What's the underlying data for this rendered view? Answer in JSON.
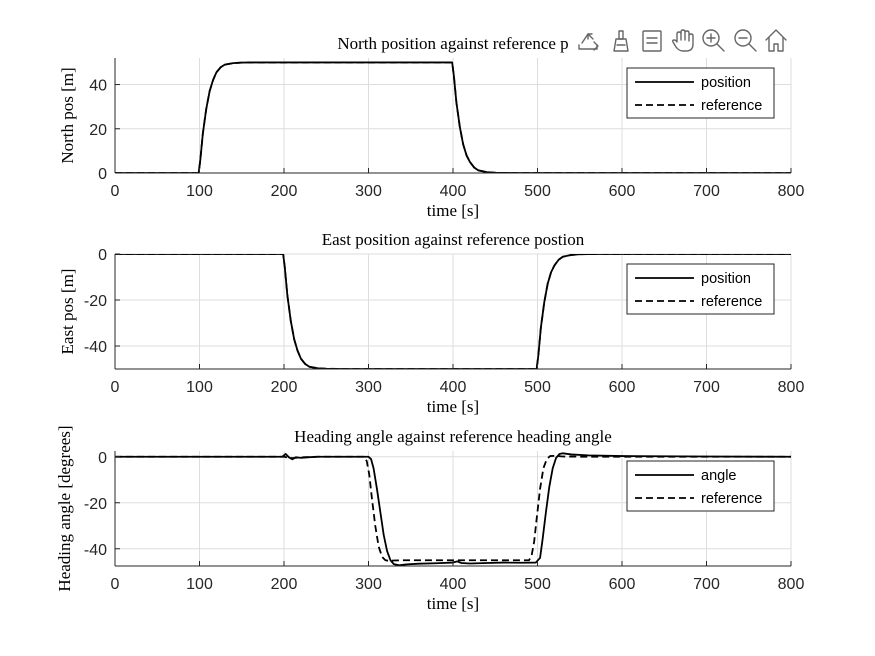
{
  "toolbar": {
    "icons": [
      "export-icon",
      "brush-icon",
      "datatip-icon",
      "pan-hand-icon",
      "zoom-in-icon",
      "zoom-out-icon",
      "home-icon"
    ]
  },
  "colors": {
    "line": "#000000",
    "grid": "#dddddd",
    "axis": "#262626",
    "background": "#ffffff"
  },
  "chart_data": [
    {
      "type": "line",
      "title": "North position against reference p",
      "xlabel": "time [s]",
      "ylabel": "North pos [m]",
      "xlim": [
        0,
        800
      ],
      "ylim": [
        0,
        52
      ],
      "xticks": [
        0,
        100,
        200,
        300,
        400,
        500,
        600,
        700,
        800
      ],
      "yticks": [
        0,
        20,
        40
      ],
      "grid": true,
      "legend_position": "top-right",
      "series": [
        {
          "name": "position",
          "style": "solid",
          "x": [
            0,
            99,
            101,
            104,
            108,
            112,
            116,
            120,
            125,
            130,
            140,
            150,
            160,
            399,
            401,
            404,
            408,
            412,
            416,
            420,
            425,
            430,
            440,
            450,
            470,
            800
          ],
          "y": [
            0,
            0,
            6,
            18,
            29,
            37,
            42,
            45.5,
            47.8,
            49,
            49.7,
            49.9,
            50,
            50,
            44,
            32,
            21,
            13,
            8,
            5,
            2.5,
            1.2,
            0.4,
            0.1,
            0,
            0
          ]
        },
        {
          "name": "reference",
          "style": "dashed",
          "x": [
            0,
            99,
            101,
            104,
            108,
            112,
            116,
            120,
            125,
            130,
            140,
            150,
            160,
            399,
            401,
            404,
            408,
            412,
            416,
            420,
            425,
            430,
            440,
            450,
            470,
            800
          ],
          "y": [
            0,
            0,
            6,
            18,
            29,
            37,
            42,
            45.5,
            47.8,
            49,
            49.7,
            49.9,
            50,
            50,
            44,
            32,
            21,
            13,
            8,
            5,
            2.5,
            1.2,
            0.4,
            0.1,
            0,
            0
          ]
        }
      ]
    },
    {
      "type": "line",
      "title": "East position against reference postion",
      "xlabel": "time [s]",
      "ylabel": "East pos [m]",
      "xlim": [
        0,
        800
      ],
      "ylim": [
        -50,
        0
      ],
      "xticks": [
        0,
        100,
        200,
        300,
        400,
        500,
        600,
        700,
        800
      ],
      "yticks": [
        -40,
        -20,
        0
      ],
      "grid": true,
      "legend_position": "top-right",
      "series": [
        {
          "name": "position",
          "style": "solid",
          "x": [
            0,
            199,
            201,
            204,
            208,
            212,
            216,
            220,
            225,
            230,
            240,
            250,
            270,
            499,
            501,
            504,
            508,
            512,
            516,
            520,
            525,
            530,
            540,
            550,
            570,
            800
          ],
          "y": [
            0,
            0,
            -6,
            -18,
            -29,
            -37,
            -42,
            -45.5,
            -47.8,
            -49,
            -49.7,
            -49.9,
            -50,
            -50,
            -44,
            -32,
            -21,
            -13,
            -8,
            -5,
            -2.5,
            -1.2,
            -0.4,
            -0.1,
            0,
            0
          ]
        },
        {
          "name": "reference",
          "style": "dashed",
          "x": [
            0,
            199,
            201,
            204,
            208,
            212,
            216,
            220,
            225,
            230,
            240,
            250,
            270,
            499,
            501,
            504,
            508,
            512,
            516,
            520,
            525,
            530,
            540,
            550,
            570,
            800
          ],
          "y": [
            0,
            0,
            -6,
            -18,
            -29,
            -37,
            -42,
            -45.5,
            -47.8,
            -49,
            -49.7,
            -49.9,
            -50,
            -50,
            -44,
            -32,
            -21,
            -13,
            -8,
            -5,
            -2.5,
            -1.2,
            -0.4,
            -0.1,
            0,
            0
          ]
        }
      ]
    },
    {
      "type": "line",
      "title": "Heading angle against reference heading angle",
      "xlabel": "time [s]",
      "ylabel": "Heading angle [degrees]",
      "xlim": [
        0,
        800
      ],
      "ylim": [
        -47.5,
        2.5
      ],
      "xticks": [
        0,
        100,
        200,
        300,
        400,
        500,
        600,
        700,
        800
      ],
      "yticks": [
        -40,
        -20,
        0
      ],
      "grid": true,
      "legend_position": "top-right",
      "series": [
        {
          "name": "angle",
          "style": "solid",
          "x": [
            0,
            198,
            202,
            206,
            210,
            214,
            220,
            230,
            240,
            300,
            303,
            306,
            310,
            314,
            318,
            322,
            326,
            330,
            336,
            345,
            360,
            380,
            400,
            405,
            410,
            420,
            440,
            460,
            480,
            498,
            503,
            506,
            510,
            514,
            518,
            522,
            526,
            530,
            540,
            560,
            600,
            700,
            800
          ],
          "y": [
            0,
            0,
            1.2,
            -0.3,
            -1.1,
            -0.2,
            -0.5,
            -0.2,
            0,
            0,
            -1,
            -5,
            -14,
            -24,
            -34,
            -41,
            -45,
            -46.7,
            -47.2,
            -46.8,
            -46.5,
            -46.3,
            -46,
            -45.5,
            -46.2,
            -46.4,
            -46.2,
            -46,
            -46.1,
            -46,
            -44,
            -36,
            -24,
            -13,
            -5,
            -0.5,
            1.2,
            1.5,
            1,
            0.6,
            0.3,
            0.1,
            0
          ]
        },
        {
          "name": "reference",
          "style": "dashed",
          "x": [
            0,
            200,
            205,
            210,
            215,
            225,
            240,
            295,
            298,
            301,
            304,
            308,
            312,
            316,
            320,
            325,
            330,
            340,
            400,
            490,
            493,
            496,
            499,
            503,
            507,
            511,
            515,
            520,
            530,
            560,
            800
          ],
          "y": [
            0,
            0,
            -0.4,
            -0.6,
            -0.4,
            -0.2,
            0,
            0,
            -2,
            -8,
            -18,
            -30,
            -39,
            -43.5,
            -45,
            -45.3,
            -45.1,
            -45,
            -45,
            -45,
            -43,
            -37,
            -27,
            -14,
            -5,
            -1,
            0.3,
            0.4,
            0.1,
            0,
            0
          ]
        }
      ]
    }
  ]
}
